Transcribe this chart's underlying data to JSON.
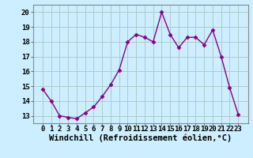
{
  "x": [
    0,
    1,
    2,
    3,
    4,
    5,
    6,
    7,
    8,
    9,
    10,
    11,
    12,
    13,
    14,
    15,
    16,
    17,
    18,
    19,
    20,
    21,
    22,
    23
  ],
  "y": [
    14.8,
    14.0,
    13.0,
    12.9,
    12.8,
    13.2,
    13.6,
    14.3,
    15.1,
    16.1,
    18.0,
    18.5,
    18.3,
    18.0,
    20.0,
    18.5,
    17.6,
    18.3,
    18.3,
    17.8,
    18.8,
    17.0,
    14.9,
    13.1
  ],
  "line_color": "#880088",
  "marker": "D",
  "marker_size": 2.5,
  "line_width": 1.0,
  "bg_color": "#cceeff",
  "grid_color": "#aacccc",
  "xlabel": "Windchill (Refroidissement éolien,°C)",
  "xlabel_fontsize": 7.5,
  "tick_fontsize": 6.5,
  "ylim": [
    12.5,
    20.5
  ],
  "yticks": [
    13,
    14,
    15,
    16,
    17,
    18,
    19,
    20
  ],
  "xticks": [
    0,
    1,
    2,
    3,
    4,
    5,
    6,
    7,
    8,
    9,
    10,
    11,
    12,
    13,
    14,
    15,
    16,
    17,
    18,
    19,
    20,
    21,
    22,
    23
  ]
}
